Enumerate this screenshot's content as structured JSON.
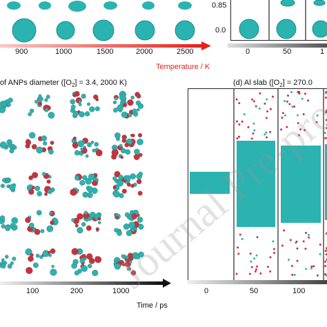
{
  "top": {
    "temperature_ticks": [
      "900",
      "1000",
      "1500",
      "2000",
      "2500"
    ],
    "temperature_label": "Temperature / K",
    "right_yticks": [
      "0.85",
      "0.0"
    ],
    "right_xticks": [
      "0",
      "50",
      "1"
    ]
  },
  "panel_c": {
    "title": "of ANPs diameter ([O",
    "title_sub": "2",
    "title_end": "] = 3.4, 2000 K)"
  },
  "panel_d": {
    "title": "(d) Al slab ([O",
    "title_sub": "2",
    "title_end": "] = 270.0"
  },
  "bottom": {
    "time_ticks": [
      "100",
      "200",
      "1000"
    ],
    "time_label": "Time / ps",
    "slab_ticks": [
      "0",
      "50",
      "100"
    ]
  },
  "watermark": "Journal Pre-proof",
  "colors": {
    "red_arrow": "#e3231b",
    "cyan": "#2ab3b0",
    "oxygen": "#c8323c"
  }
}
